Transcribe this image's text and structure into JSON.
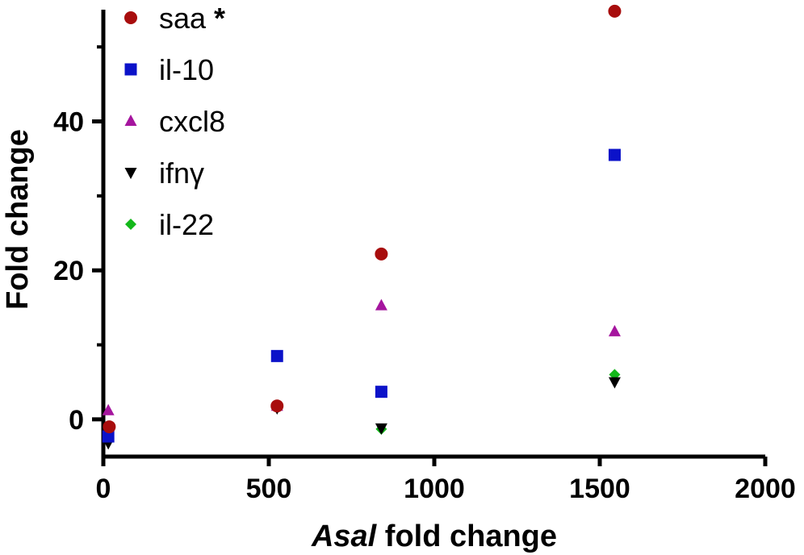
{
  "chart_data": {
    "type": "scatter",
    "title": "",
    "xlabel_italic": "Asal",
    "xlabel_rest": " fold change",
    "ylabel": "Fold change",
    "xlim": [
      0,
      2000
    ],
    "ylim": [
      -5,
      55
    ],
    "x_ticks": [
      0,
      500,
      1000,
      1500,
      2000
    ],
    "x_tick_labels": [
      "0",
      "500",
      "1000",
      "1500",
      "2000"
    ],
    "y_major_ticks": [
      0,
      20,
      40
    ],
    "y_tick_labels": [
      "0",
      "20",
      "40"
    ],
    "y_minor_ticks": [
      10,
      30,
      50
    ],
    "grid": false,
    "legend_position": "top-left",
    "series": [
      {
        "name": "saa",
        "marker": "circle",
        "color": "#a80d0d",
        "legend_suffix": "*",
        "points": [
          {
            "x": 18,
            "y": -1
          },
          {
            "x": 525,
            "y": 1.8
          },
          {
            "x": 840,
            "y": 22.2
          },
          {
            "x": 1545,
            "y": 54.8
          }
        ]
      },
      {
        "name": "il-10",
        "marker": "square",
        "color": "#0b12c9",
        "points": [
          {
            "x": 15,
            "y": -2.3
          },
          {
            "x": 525,
            "y": 8.5
          },
          {
            "x": 840,
            "y": 3.7
          },
          {
            "x": 1545,
            "y": 35.5
          }
        ]
      },
      {
        "name": "cxcl8",
        "marker": "triangle-up",
        "color": "#a5159e",
        "points": [
          {
            "x": 15,
            "y": 1.2
          },
          {
            "x": 525,
            "y": 1.8
          },
          {
            "x": 840,
            "y": 15.3
          },
          {
            "x": 1545,
            "y": 11.8
          }
        ]
      },
      {
        "name": "ifnγ",
        "marker": "triangle-down",
        "color": "#000000",
        "points": [
          {
            "x": 15,
            "y": -3.2
          },
          {
            "x": 525,
            "y": 1.5
          },
          {
            "x": 840,
            "y": -1.2
          },
          {
            "x": 1545,
            "y": 5
          }
        ]
      },
      {
        "name": "il-22",
        "marker": "diamond",
        "color": "#13b81a",
        "points": [
          {
            "x": 15,
            "y": -2
          },
          {
            "x": 525,
            "y": 1.7
          },
          {
            "x": 840,
            "y": -1.3
          },
          {
            "x": 1545,
            "y": 6
          }
        ]
      }
    ]
  }
}
